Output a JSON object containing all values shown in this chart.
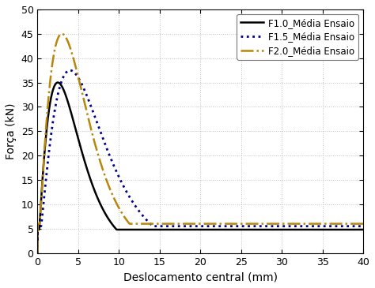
{
  "title": "",
  "xlabel": "Deslocamento central (mm)",
  "ylabel": "Força (kN)",
  "xlim": [
    0,
    40
  ],
  "ylim": [
    0,
    50
  ],
  "xticks": [
    0,
    5,
    10,
    15,
    20,
    25,
    30,
    35,
    40
  ],
  "yticks": [
    0,
    5,
    10,
    15,
    20,
    25,
    30,
    35,
    40,
    45,
    50
  ],
  "legend": [
    {
      "label": "F1.0_Média Ensaio",
      "color": "#000000",
      "linestyle": "solid",
      "linewidth": 1.8
    },
    {
      "label": "F1.5_Média Ensaio",
      "color": "#00008B",
      "linestyle": "dotted",
      "linewidth": 2.0
    },
    {
      "label": "F2.0_Média Ensaio",
      "color": "#B8860B",
      "linestyle": "dashdot",
      "linewidth": 1.8
    }
  ],
  "grid_color": "#b0b0b0",
  "background_color": "#ffffff",
  "curves": [
    {
      "peak_x": 2.5,
      "peak_y": 35.0,
      "alpha": 1.3,
      "floor": 4.8
    },
    {
      "peak_x": 4.0,
      "peak_y": 37.5,
      "alpha": 1.5,
      "floor": 5.5
    },
    {
      "peak_x": 3.0,
      "peak_y": 45.0,
      "alpha": 1.4,
      "floor": 6.0
    }
  ]
}
